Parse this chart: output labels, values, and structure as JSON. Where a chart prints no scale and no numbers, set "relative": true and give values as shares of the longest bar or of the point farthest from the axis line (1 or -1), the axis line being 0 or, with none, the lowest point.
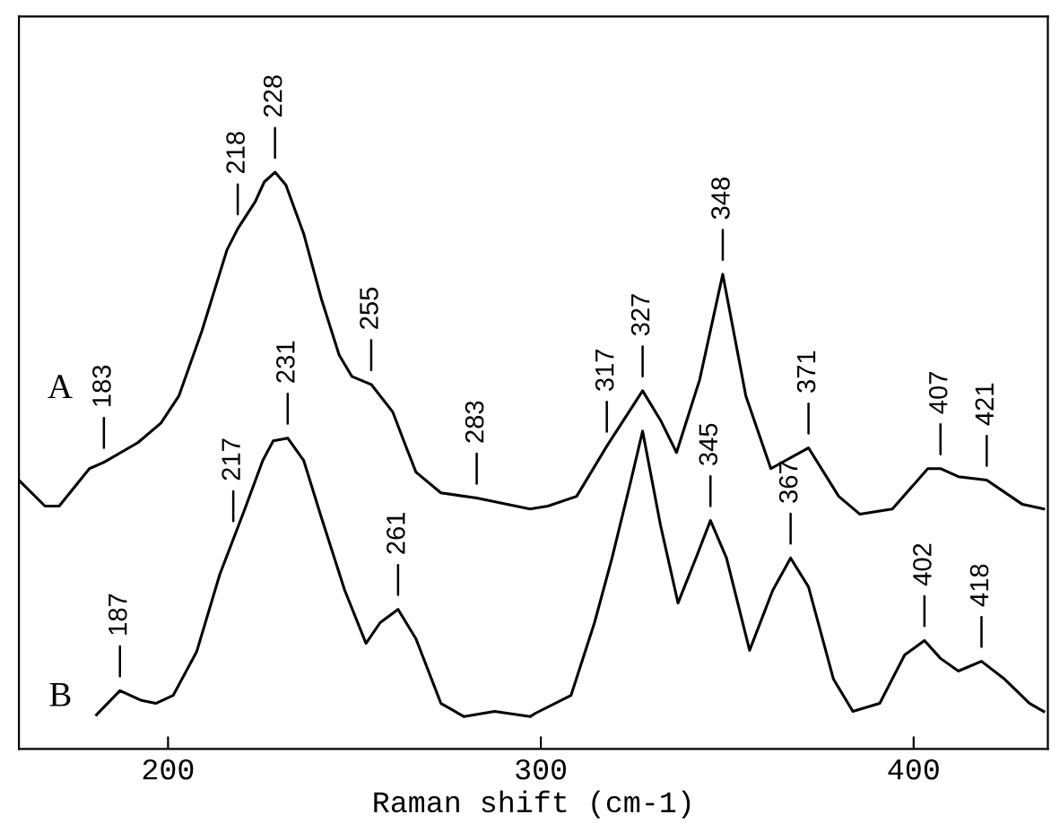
{
  "chart_data": {
    "type": "line",
    "relative": true,
    "xlabel": "Raman shift (cm-1)",
    "xlim": [
      160,
      436
    ],
    "xticks": [
      200,
      300,
      400
    ],
    "tick_labels": "x",
    "grid": false,
    "legend": false,
    "marker": "none",
    "line_style": "solid",
    "series": [
      {
        "name": "A",
        "color": "#000000",
        "x": [
          160,
          167.0,
          170.8,
          178.9,
          182.8,
          191.9,
          198.1,
          202.9,
          209.1,
          215.8,
          218.7,
          223.4,
          225.8,
          228.7,
          231.6,
          236.4,
          241.1,
          245.9,
          249.3,
          254.5,
          260.3,
          263.6,
          266.5,
          273.2,
          282.8,
          297.1,
          301.9,
          309.6,
          317.7,
          327.3,
          332.1,
          336.4,
          342.6,
          348.8,
          355.0,
          361.7,
          371.8,
          379.9,
          385.6,
          394.3,
          403.8,
          407.2,
          412.0,
          419.6,
          429.2,
          434.9
        ],
        "values": [
          0.466,
          0.421,
          0.421,
          0.486,
          0.497,
          0.531,
          0.565,
          0.612,
          0.725,
          0.865,
          0.902,
          0.949,
          0.983,
          1.0,
          0.978,
          0.893,
          0.781,
          0.683,
          0.646,
          0.632,
          0.584,
          0.528,
          0.48,
          0.444,
          0.435,
          0.416,
          0.421,
          0.438,
          0.525,
          0.621,
          0.57,
          0.514,
          0.64,
          0.823,
          0.612,
          0.486,
          0.522,
          0.438,
          0.407,
          0.416,
          0.486,
          0.486,
          0.472,
          0.466,
          0.424,
          0.416
        ]
      },
      {
        "name": "B",
        "color": "#000000",
        "x": [
          180.8,
          187.1,
          192.9,
          196.7,
          201.4,
          207.7,
          213.9,
          220.6,
          225.4,
          228.2,
          232.1,
          236.4,
          241.1,
          247.4,
          253.1,
          256.9,
          261.7,
          266.5,
          273.2,
          279.4,
          287.6,
          297.1,
          298.6,
          308.1,
          314.4,
          319.1,
          323.9,
          327.3,
          332.1,
          336.8,
          341.6,
          345.5,
          349.8,
          356.0,
          362.2,
          367.0,
          371.8,
          378.5,
          383.7,
          390.9,
          397.6,
          402.9,
          407.2,
          412.0,
          418.2,
          424.4,
          431.1,
          434.9
        ],
        "values": [
          0.059,
          0.101,
          0.084,
          0.079,
          0.093,
          0.169,
          0.303,
          0.416,
          0.5,
          0.534,
          0.539,
          0.5,
          0.402,
          0.275,
          0.183,
          0.219,
          0.242,
          0.191,
          0.079,
          0.056,
          0.065,
          0.056,
          0.062,
          0.093,
          0.219,
          0.331,
          0.458,
          0.551,
          0.388,
          0.253,
          0.331,
          0.396,
          0.331,
          0.171,
          0.275,
          0.331,
          0.281,
          0.121,
          0.065,
          0.079,
          0.163,
          0.188,
          0.157,
          0.135,
          0.152,
          0.121,
          0.079,
          0.065
        ]
      }
    ],
    "annotations": [
      {
        "text": "183",
        "x": 182.8,
        "y": 0.497
      },
      {
        "text": "218",
        "x": 218.7,
        "y": 0.902
      },
      {
        "text": "228",
        "x": 228.7,
        "y": 1.0
      },
      {
        "text": "255",
        "x": 254.5,
        "y": 0.632
      },
      {
        "text": "283",
        "x": 282.8,
        "y": 0.435
      },
      {
        "text": "317",
        "x": 317.7,
        "y": 0.525
      },
      {
        "text": "327",
        "x": 327.3,
        "y": 0.621
      },
      {
        "text": "348",
        "x": 348.8,
        "y": 0.823
      },
      {
        "text": "371",
        "x": 371.8,
        "y": 0.522
      },
      {
        "text": "407",
        "x": 407.2,
        "y": 0.486
      },
      {
        "text": "421",
        "x": 419.6,
        "y": 0.466
      },
      {
        "text": "187",
        "x": 187.1,
        "y": 0.101
      },
      {
        "text": "217",
        "x": 217.5,
        "y": 0.37
      },
      {
        "text": "231",
        "x": 232.1,
        "y": 0.539
      },
      {
        "text": "261",
        "x": 261.7,
        "y": 0.242
      },
      {
        "text": "345",
        "x": 345.5,
        "y": 0.396
      },
      {
        "text": "367",
        "x": 367.0,
        "y": 0.331
      },
      {
        "text": "402",
        "x": 402.9,
        "y": 0.188
      },
      {
        "text": "418",
        "x": 418.2,
        "y": 0.152
      }
    ]
  }
}
